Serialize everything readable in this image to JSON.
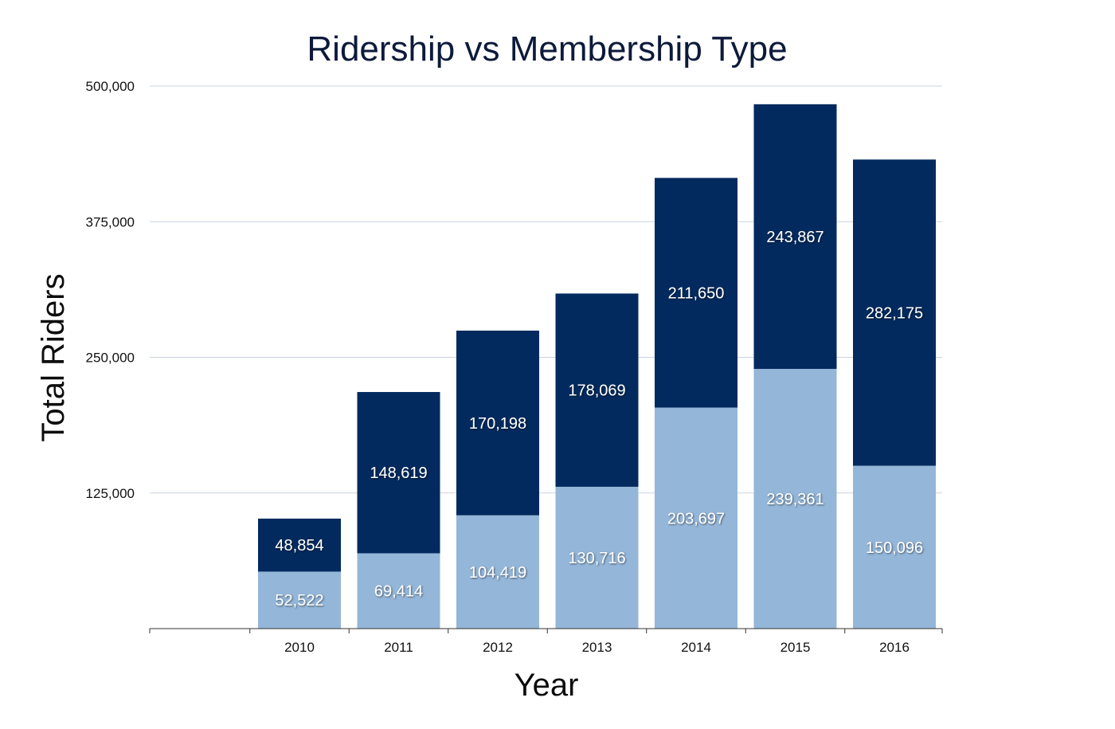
{
  "chart_data": {
    "type": "bar",
    "stacked": true,
    "title": "Ridership vs Membership Type",
    "xlabel": "Year",
    "ylabel": "Total Riders",
    "categories": [
      "2010",
      "2011",
      "2012",
      "2013",
      "2014",
      "2015",
      "2016"
    ],
    "series": [
      {
        "values": [
          52522,
          69414,
          104419,
          130716,
          203697,
          239361,
          150096
        ],
        "color": "#94b6d8"
      },
      {
        "values": [
          48854,
          148619,
          170198,
          178069,
          211650,
          243867,
          282175
        ],
        "color": "#022a5e"
      }
    ],
    "value_labels": [
      [
        "52,522",
        "69,414",
        "104,419",
        "130,716",
        "203,697",
        "239,361",
        "150,096"
      ],
      [
        "48,854",
        "148,619",
        "170,198",
        "178,069",
        "211,650",
        "243,867",
        "282,175"
      ]
    ],
    "ylim": [
      0,
      500000
    ],
    "yticks": [
      125000,
      250000,
      375000,
      500000
    ],
    "ytick_labels": [
      "125,000",
      "250,000",
      "375,000",
      "500,000"
    ],
    "grid": true,
    "legend": "none"
  }
}
